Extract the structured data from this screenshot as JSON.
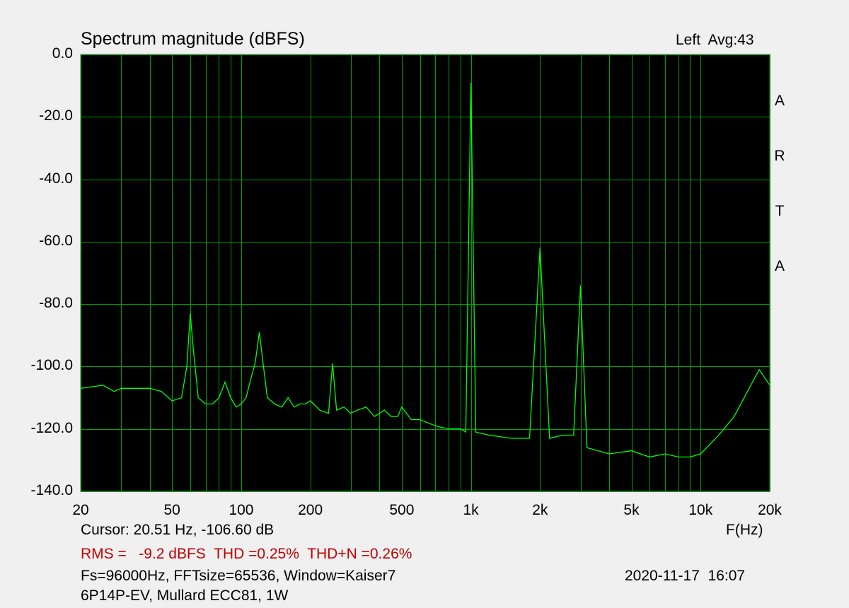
{
  "chart_data": {
    "type": "line",
    "title": "Spectrum magnitude (dBFS)",
    "channel_label": "Left  Avg:43",
    "brand_letters": [
      "A",
      "R",
      "T",
      "A"
    ],
    "xscale": "log",
    "xlim": [
      20,
      20000
    ],
    "ylim": [
      -140,
      0
    ],
    "xlabel": "F(Hz)",
    "x_ticks": [
      20,
      50,
      100,
      200,
      500,
      1000,
      2000,
      5000,
      10000,
      20000
    ],
    "x_tick_labels": [
      "20",
      "50",
      "100",
      "200",
      "500",
      "1k",
      "2k",
      "5k",
      "10k",
      "20k"
    ],
    "y_ticks": [
      0,
      -20,
      -40,
      -60,
      -80,
      -100,
      -120,
      -140
    ],
    "y_tick_labels": [
      "0.0",
      "-20.0",
      "-40.0",
      "-60.0",
      "-80.0",
      "-100.0",
      "-120.0",
      "-140.0"
    ],
    "grid": true,
    "colors": {
      "plot_bg": "#000000",
      "grid": "#00a000",
      "trace": "#00ff00",
      "stats_text": "#c00000"
    },
    "series": [
      {
        "x": [
          20,
          25,
          28,
          30,
          35,
          40,
          45,
          50,
          55,
          58,
          60,
          62,
          65,
          70,
          75,
          80,
          85,
          90,
          95,
          100,
          105,
          110,
          115,
          120,
          125,
          130,
          140,
          150,
          160,
          170,
          180,
          190,
          200,
          220,
          240,
          250,
          260,
          280,
          300,
          320,
          350,
          360,
          380,
          400,
          420,
          450,
          480,
          500,
          550,
          600,
          700,
          800,
          900,
          950,
          1000,
          1050,
          1200,
          1500,
          1800,
          2000,
          2200,
          2500,
          2800,
          3000,
          3200,
          4000,
          5000,
          6000,
          7000,
          8000,
          9000,
          10000,
          12000,
          14000,
          16000,
          18000,
          20000
        ],
        "y": [
          -107,
          -106,
          -108,
          -107,
          -107,
          -107,
          -108,
          -111,
          -110,
          -100,
          -83,
          -95,
          -110,
          -112,
          -112,
          -110,
          -105,
          -110,
          -113,
          -112,
          -110,
          -104,
          -99,
          -89,
          -100,
          -110,
          -112,
          -113,
          -110,
          -113,
          -112,
          -112,
          -111,
          -114,
          -115,
          -99,
          -114,
          -113,
          -115,
          -114,
          -113,
          -114,
          -116,
          -115,
          -114,
          -116,
          -116,
          -113,
          -117,
          -117,
          -119,
          -120,
          -120,
          -121,
          -9,
          -121,
          -122,
          -123,
          -123,
          -62,
          -123,
          -122,
          -122,
          -74,
          -126,
          -128,
          -127,
          -129,
          -128,
          -129,
          -129,
          -128,
          -122,
          -116,
          -108,
          -101,
          -106
        ]
      }
    ]
  },
  "status": {
    "cursor": "Cursor: 20.51 Hz, -106.60 dB",
    "stats": "RMS =   -9.2 dBFS  THD =0.25%  THD+N =0.26%",
    "params": "Fs=96000Hz, FFTsize=65536, Window=Kaiser7",
    "datetime": "2020-11-17  16:07",
    "device": "6P14P-EV, Mullard ECC81, 1W"
  }
}
